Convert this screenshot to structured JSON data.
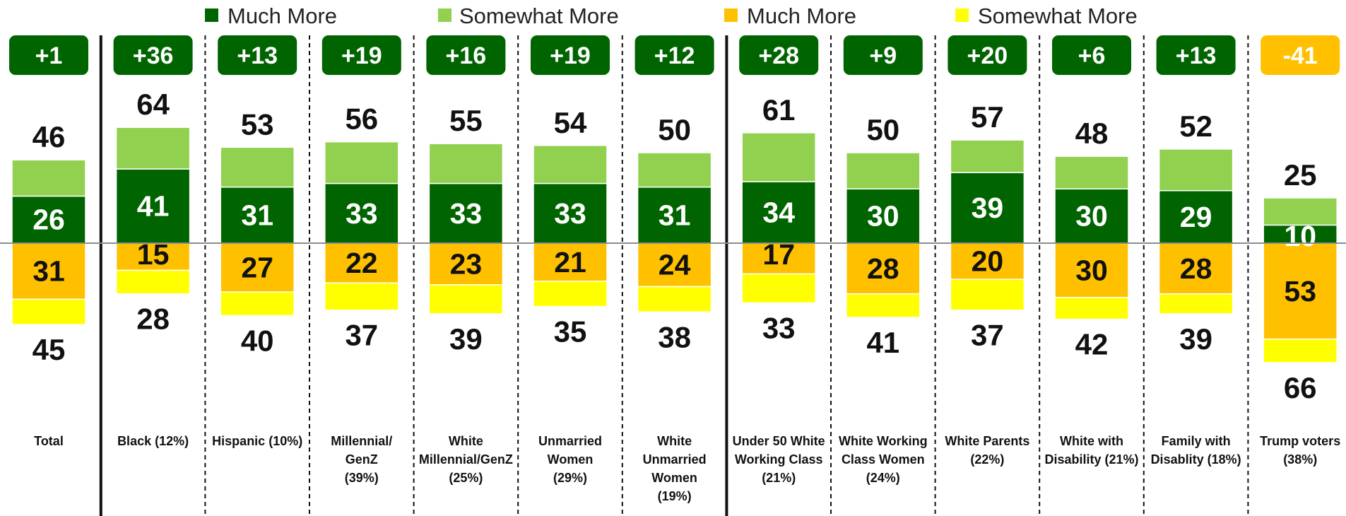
{
  "colors": {
    "much_more_pos": "#006400",
    "somewhat_more_pos": "#92D050",
    "much_more_neg": "#FFC000",
    "somewhat_more_neg": "#FFFF00",
    "net_negative_badge": "#FFC000",
    "net_negative_text": "#111111"
  },
  "chart_data": {
    "type": "bar",
    "stacking": "diverging",
    "legend": {
      "placement": "top",
      "entries": [
        {
          "label": "Much More",
          "color": "#006400"
        },
        {
          "label": "Somewhat More",
          "color": "#92D050"
        },
        {
          "label": "Much More",
          "color": "#FFC000"
        },
        {
          "label": "Somewhat More",
          "color": "#FFFF00"
        }
      ]
    },
    "categories": [
      [
        "Total"
      ],
      [
        "Black (12%)"
      ],
      [
        "Hispanic (10%)"
      ],
      [
        "Millennial/",
        "GenZ",
        "(39%)"
      ],
      [
        "White",
        "Millennial/GenZ",
        "(25%)"
      ],
      [
        "Unmarried",
        "Women",
        "(29%)"
      ],
      [
        "White",
        "Unmarried",
        "Women",
        "(19%)"
      ],
      [
        "Under 50 White",
        "Working Class",
        "(21%)"
      ],
      [
        "White Working",
        "Class Women",
        "(24%)"
      ],
      [
        "White Parents",
        "(22%)"
      ],
      [
        "White with",
        "Disability (21%)"
      ],
      [
        "Family with",
        "Disablity (18%)"
      ],
      [
        "Trump voters",
        "(38%)"
      ]
    ],
    "net": [
      "+1",
      "+36",
      "+13",
      "+19",
      "+16",
      "+19",
      "+12",
      "+28",
      "+9",
      "+20",
      "+6",
      "+13",
      "-41"
    ],
    "positive_total": [
      46,
      64,
      53,
      56,
      55,
      54,
      50,
      61,
      50,
      57,
      48,
      52,
      25
    ],
    "positive_much": [
      26,
      41,
      31,
      33,
      33,
      33,
      31,
      34,
      30,
      39,
      30,
      29,
      10
    ],
    "negative_total": [
      45,
      28,
      40,
      37,
      39,
      35,
      38,
      33,
      41,
      37,
      42,
      39,
      66
    ],
    "negative_much": [
      31,
      15,
      27,
      22,
      23,
      21,
      24,
      17,
      28,
      20,
      30,
      28,
      53
    ],
    "separators": [
      "solid",
      "dashed",
      "dashed",
      "dashed",
      "dashed",
      "dashed",
      "solid",
      "dashed",
      "dashed",
      "dashed",
      "dashed",
      "dashed"
    ]
  }
}
